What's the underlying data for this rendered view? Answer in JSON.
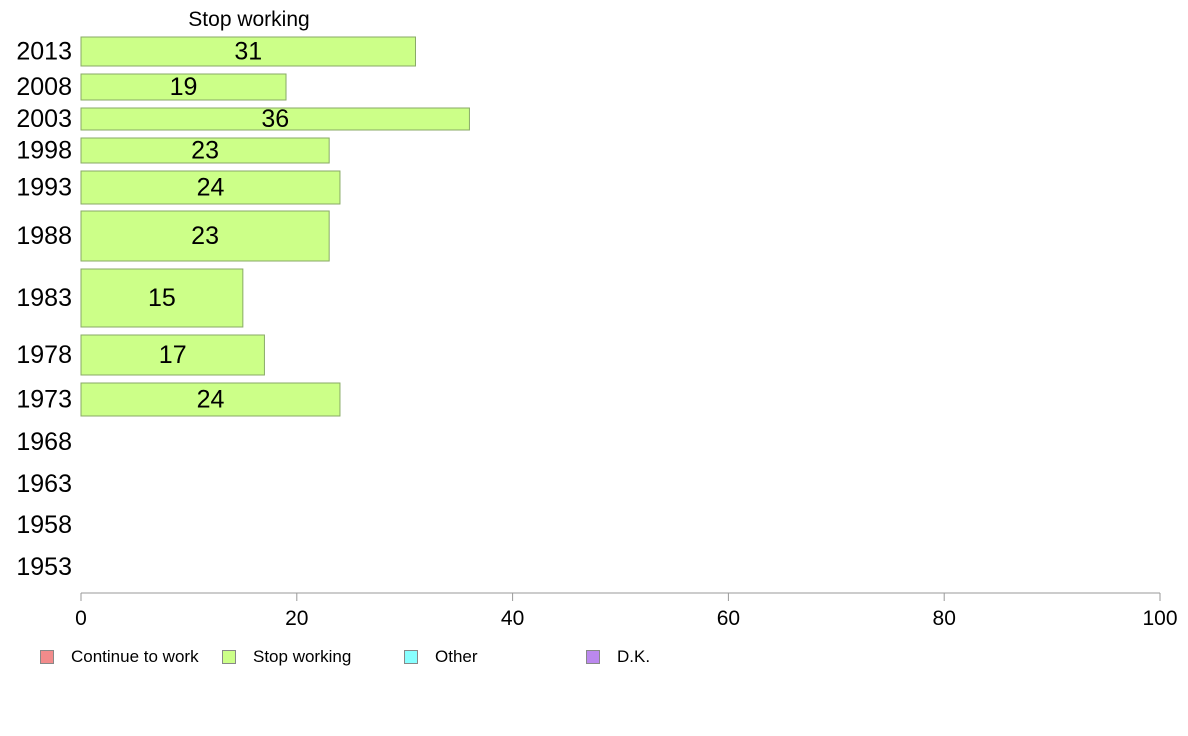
{
  "chart_data": {
    "type": "bar",
    "orientation": "horizontal",
    "title": "Stop working",
    "categories": [
      "2013",
      "2008",
      "2003",
      "1998",
      "1993",
      "1988",
      "1983",
      "1978",
      "1973",
      "1968",
      "1963",
      "1958",
      "1953"
    ],
    "series": [
      {
        "name": "Stop working",
        "values": [
          31,
          19,
          36,
          23,
          24,
          23,
          15,
          17,
          24,
          null,
          null,
          null,
          null
        ]
      }
    ],
    "xlim": [
      0,
      100
    ],
    "xticks": [
      "0",
      "20",
      "40",
      "60",
      "80",
      "100"
    ],
    "grid": false,
    "legend_position": "bottom-left"
  },
  "legend": [
    {
      "label": "Continue to work",
      "color": "#f28b8b"
    },
    {
      "label": "Stop working",
      "color": "#ccff88"
    },
    {
      "label": "Other",
      "color": "#88ffff"
    },
    {
      "label": "D.K.",
      "color": "#bb88ee"
    }
  ],
  "colors": {
    "bar_fill": "#ccff88",
    "bar_stroke": "#88aa66",
    "axis": "#999999"
  }
}
